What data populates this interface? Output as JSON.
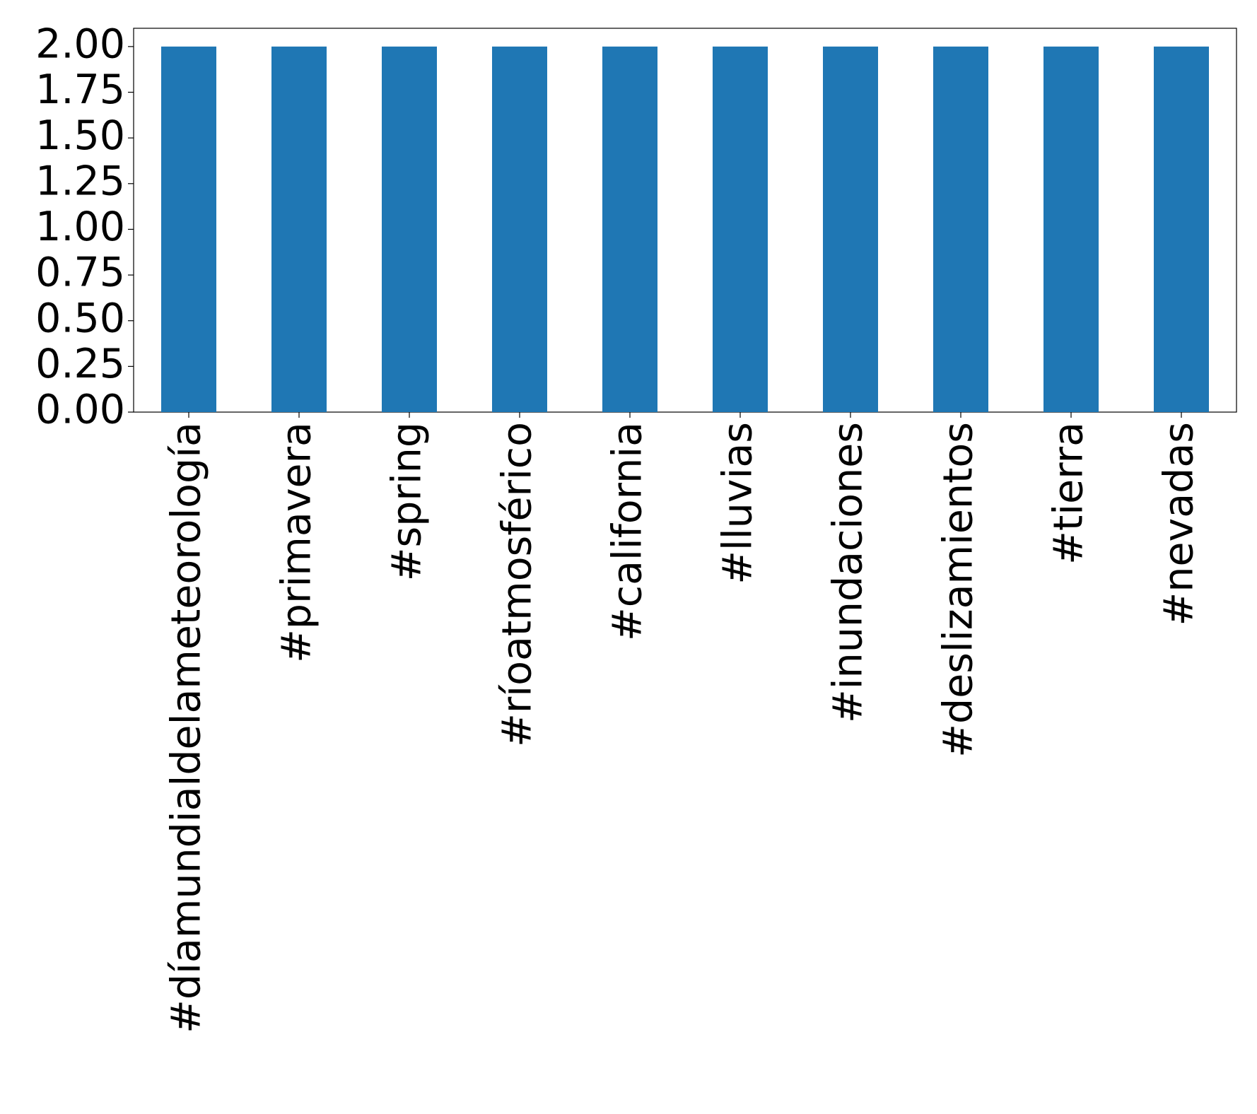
{
  "chart_data": {
    "type": "bar",
    "categories": [
      "#díamundialdelameteorología",
      "#primavera",
      "#spring",
      "#ríoatmosférico",
      "#california",
      "#lluvias",
      "#inundaciones",
      "#deslizamientos",
      "#tierra",
      "#nevadas"
    ],
    "values": [
      2,
      2,
      2,
      2,
      2,
      2,
      2,
      2,
      2,
      2
    ],
    "color": "#1f77b4",
    "ylim": [
      0,
      2.1
    ],
    "yticks": [
      {
        "value": 0,
        "label": "0.00"
      },
      {
        "value": 0.25,
        "label": "0.25"
      },
      {
        "value": 0.5,
        "label": "0.50"
      },
      {
        "value": 0.75,
        "label": "0.75"
      },
      {
        "value": 1,
        "label": "1.00"
      },
      {
        "value": 1.25,
        "label": "1.25"
      },
      {
        "value": 1.5,
        "label": "1.50"
      },
      {
        "value": 1.75,
        "label": "1.75"
      },
      {
        "value": 2,
        "label": "2.00"
      }
    ],
    "grid": false
  }
}
